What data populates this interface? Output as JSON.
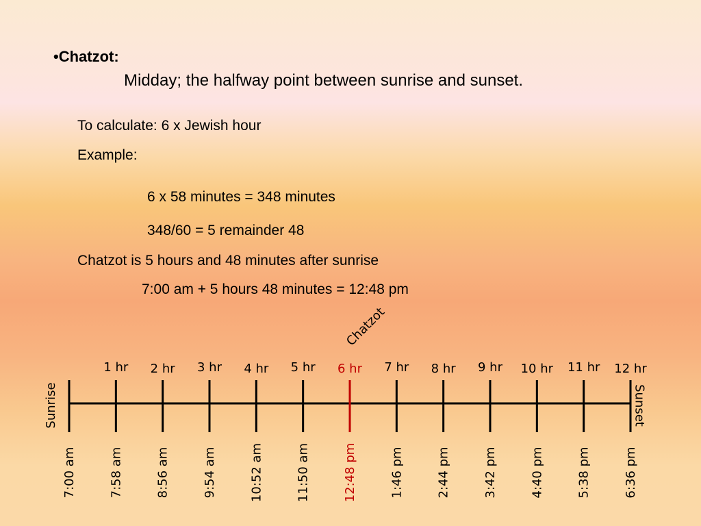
{
  "heading": {
    "bullet": "•",
    "title": "Chatzot:"
  },
  "definition": "Midday; the halfway point between sunrise and sunset.",
  "calc": {
    "formula": "To calculate:  6 x Jewish hour",
    "example_label": "Example:",
    "step1": "6 x 58 minutes = 348 minutes",
    "step2": "348/60 = 5 remainder 48",
    "result": "Chatzot is 5 hours and 48 minutes after sunrise",
    "final": "7:00 am + 5 hours 48 minutes = 12:48 pm"
  },
  "timeline": {
    "start_label": "Sunrise",
    "end_label": "Sunset",
    "marker_label": "Chatzot",
    "highlight_index": 6,
    "highlight_color": "#c00000",
    "hours": [
      "1 hr",
      "2 hr",
      "3 hr",
      "4 hr",
      "5 hr",
      "6 hr",
      "7 hr",
      "8 hr",
      "9 hr",
      "10 hr",
      "11 hr",
      "12 hr"
    ],
    "times": [
      "7:00 am",
      "7:58 am",
      "8:56 am",
      "9:54 am",
      "10:52 am",
      "11:50 am",
      "12:48 pm",
      "1:46 pm",
      "2:44 pm",
      "3:42 pm",
      "4:40 pm",
      "5:38 pm",
      "6:36 pm"
    ]
  }
}
